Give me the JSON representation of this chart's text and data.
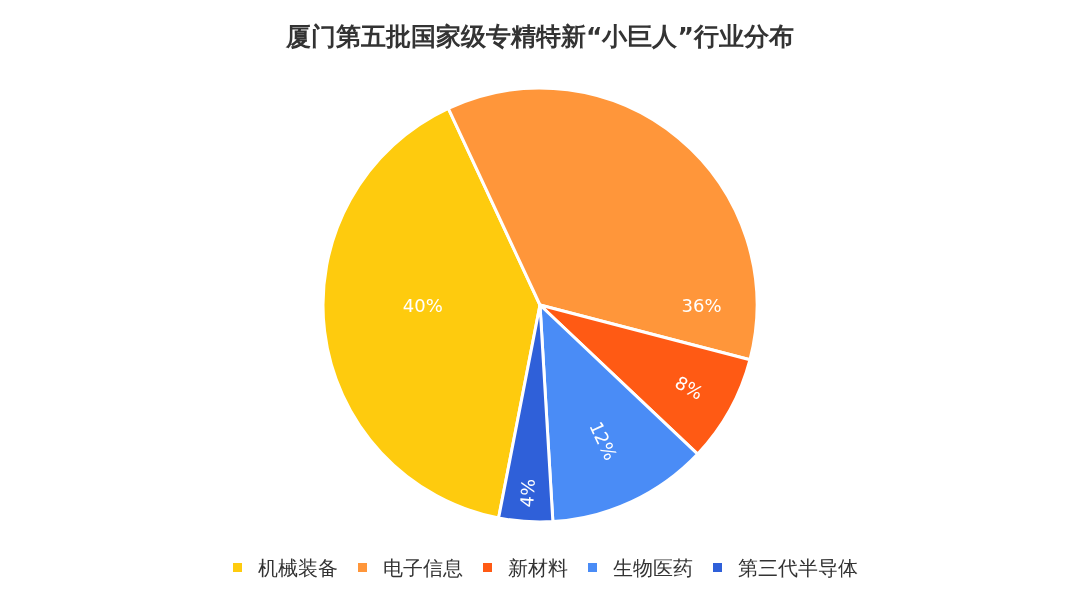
{
  "chart_data": {
    "type": "pie",
    "title": "厦门第五批国家级专精特新“小巨人”行业分布",
    "categories": [
      "机械装备",
      "电子信息",
      "新材料",
      "生物医药",
      "第三代半导体"
    ],
    "values": [
      40,
      36,
      8,
      12,
      4
    ],
    "colors": [
      "#fecb0e",
      "#ff963a",
      "#ff5a14",
      "#4a8cf6",
      "#2f60d9"
    ],
    "value_labels": [
      "40%",
      "36%",
      "8%",
      "12%",
      "4%"
    ],
    "legend": "bottom"
  }
}
